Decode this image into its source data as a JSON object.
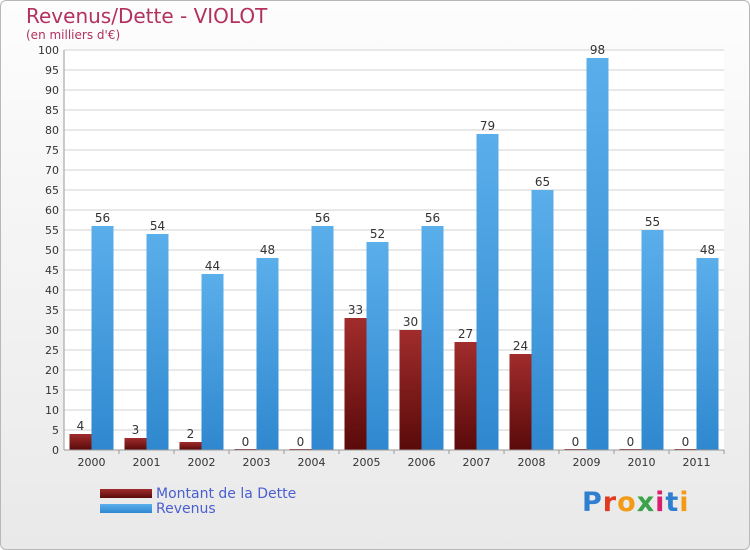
{
  "colors": {
    "title": "#b3305f",
    "grid": "#d2d2d2",
    "axis_text": "#333333",
    "legend_text": "#4a5fd0",
    "debt_top": "#a12c2c",
    "debt_bottom": "#5a0a0a",
    "revenue_top": "#5aaeea",
    "revenue_bottom": "#2f88cf"
  },
  "logo": {
    "text": "Proxiti",
    "letter_colors": [
      "#2f7fd0",
      "#e03a1f",
      "#f39a16",
      "#3aa34a",
      "#d91f6d",
      "#2f7fd0",
      "#f39a16"
    ]
  },
  "chart_data": {
    "type": "bar",
    "title": "Revenus/Dette - VIOLOT",
    "subtitle": "(en milliers d'€)",
    "xlabel": "",
    "ylabel": "",
    "ylim": [
      0,
      100
    ],
    "ytick_step": 5,
    "grid": true,
    "legend_position": "bottom-left",
    "categories": [
      "2000",
      "2001",
      "2002",
      "2003",
      "2004",
      "2005",
      "2006",
      "2007",
      "2008",
      "2009",
      "2010",
      "2011"
    ],
    "series": [
      {
        "name": "Montant de la Dette",
        "values": [
          4,
          3,
          2,
          0,
          0,
          33,
          30,
          27,
          24,
          0,
          0,
          0
        ]
      },
      {
        "name": "Revenus",
        "values": [
          56,
          54,
          44,
          48,
          56,
          52,
          56,
          79,
          65,
          98,
          55,
          48
        ]
      }
    ]
  }
}
